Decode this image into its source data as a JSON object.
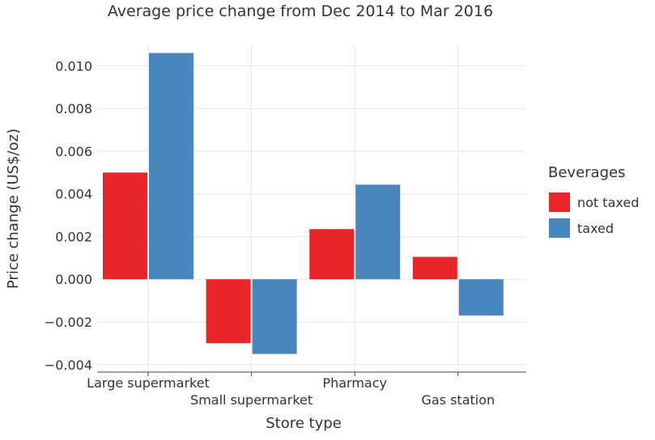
{
  "chart_data": {
    "type": "bar",
    "title": "Average price change from Dec 2014 to Mar 2016",
    "xlabel": "Store type",
    "ylabel": "Price change (US$/oz)",
    "categories": [
      "Large supermarket",
      "Small supermarket",
      "Pharmacy",
      "Gas station"
    ],
    "series": [
      {
        "name": "not taxed",
        "color": "#e8262a",
        "values": [
          0.005,
          -0.003,
          0.00235,
          0.00105
        ]
      },
      {
        "name": "taxed",
        "color": "#4a86be",
        "values": [
          0.0106,
          -0.0035,
          0.00443,
          -0.0017
        ]
      }
    ],
    "ylim": [
      -0.00435,
      0.011
    ],
    "yticks": [
      -0.004,
      -0.002,
      0.0,
      0.002,
      0.004,
      0.006,
      0.008,
      0.01
    ],
    "ytick_labels": [
      "−0.004",
      "−0.002",
      "0.000",
      "0.002",
      "0.004",
      "0.006",
      "0.008",
      "0.010"
    ],
    "grid": true,
    "legend": {
      "title": "Beverages",
      "position": "right"
    }
  }
}
